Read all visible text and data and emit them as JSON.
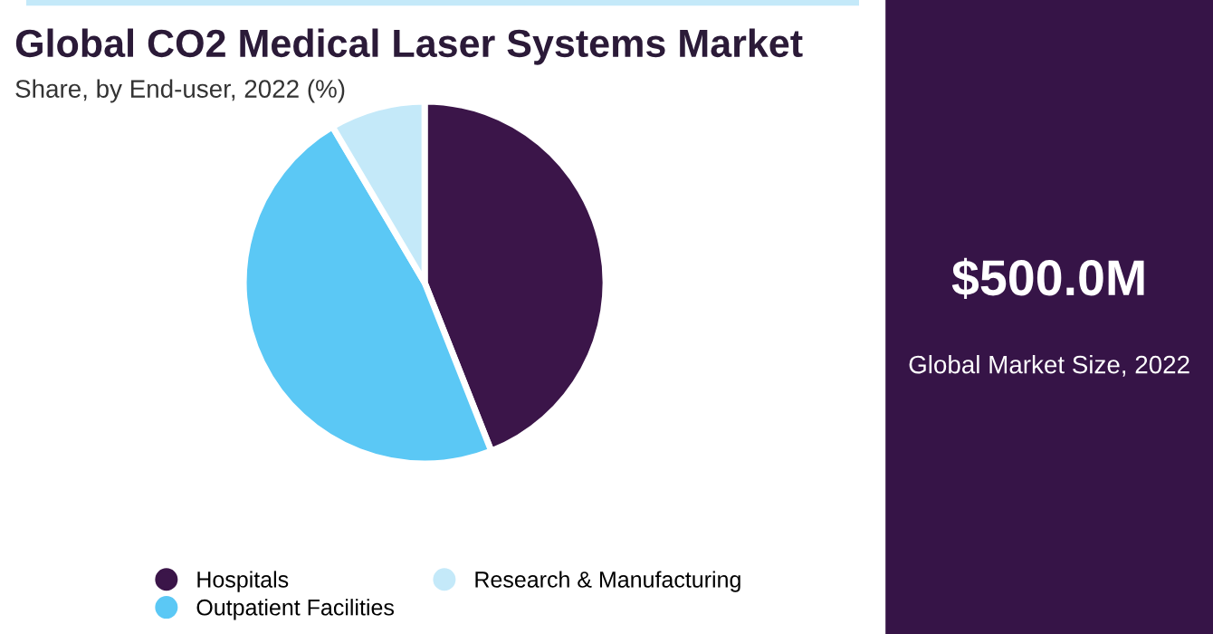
{
  "chart_data": [
    {
      "type": "pie",
      "title": "Global CO2 Medical Laser Systems Market",
      "subtitle": "Share, by End-user, 2022 (%)",
      "categories": [
        "Hospitals",
        "Outpatient Facilities",
        "Research & Manufacturing"
      ],
      "values": [
        44,
        47.5,
        8.5
      ],
      "colors": [
        "#3b1549",
        "#5bc8f5",
        "#c4e9f9"
      ],
      "legend": "bottom"
    },
    {
      "type": "other",
      "title": "$500.0M",
      "subtitle": "Global Market Size, 2022"
    }
  ]
}
